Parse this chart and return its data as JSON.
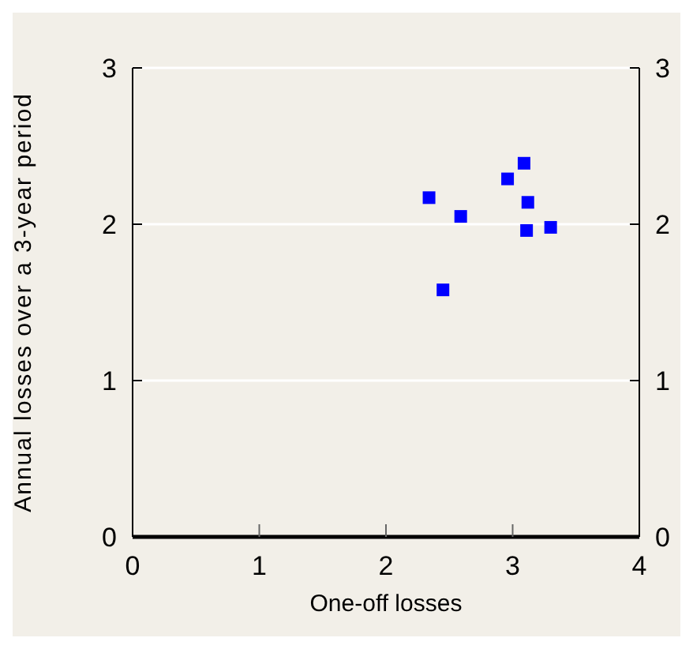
{
  "chart_data": {
    "type": "scatter",
    "xlabel": "One-off losses",
    "ylabel": "Annual losses over a 3-year period",
    "x": [
      2.34,
      2.59,
      2.45,
      2.96,
      3.09,
      3.12,
      3.11,
      3.3
    ],
    "series": [
      {
        "color": "#0000ff",
        "values": [
          2.17,
          2.05,
          1.58,
          2.29,
          2.39,
          2.14,
          1.96,
          1.98
        ]
      }
    ],
    "xlim": [
      0,
      4
    ],
    "xticks": [
      0,
      1,
      2,
      3,
      4
    ],
    "ylim": [
      0,
      3
    ],
    "yticks": [
      0,
      1,
      2,
      3
    ],
    "y2lim": [
      0,
      3
    ],
    "y2ticks": [
      0,
      1,
      2,
      3
    ],
    "grid": "y",
    "marker": "square"
  }
}
